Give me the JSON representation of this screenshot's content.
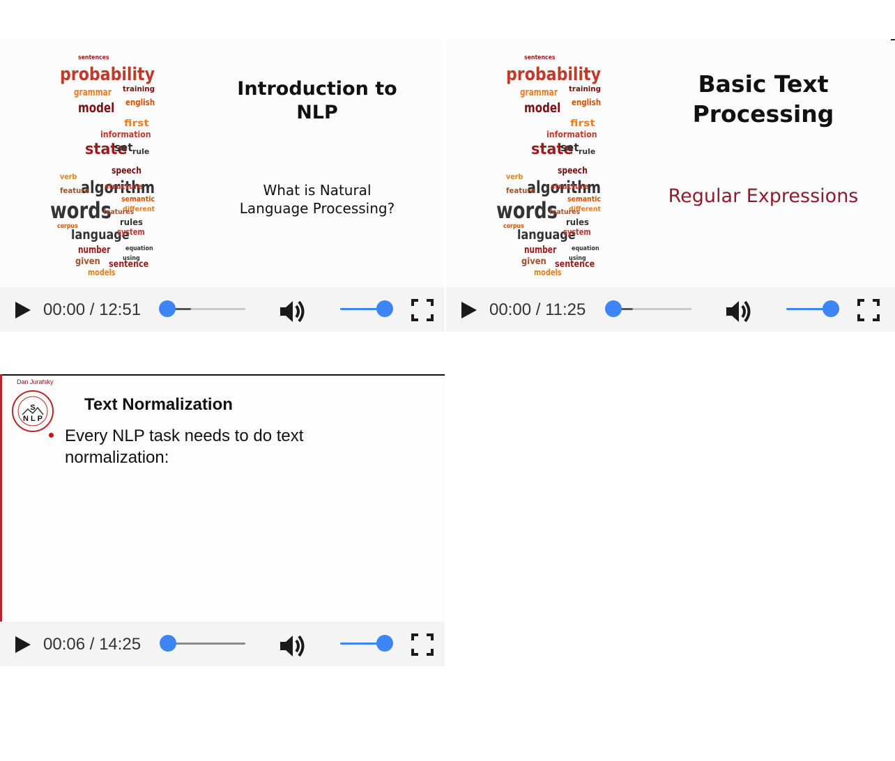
{
  "players": [
    {
      "slide": {
        "title": "Introduction to NLP",
        "subtitle": "What is Natural Language Processing?"
      },
      "controls": {
        "time": "00:00 / 12:51",
        "progress": 0.0,
        "volume": 1.0,
        "play_icon": "play-icon",
        "volume_icon": "volume-icon",
        "fullscreen_icon": "fullscreen-icon"
      }
    },
    {
      "slide": {
        "title": "Basic Text Processing",
        "subtitle": "Regular Expressions",
        "subtitle_color": "#8f1b2c"
      },
      "controls": {
        "time": "00:00 / 11:25",
        "progress": 0.0,
        "volume": 1.0,
        "play_icon": "play-icon",
        "volume_icon": "volume-icon",
        "fullscreen_icon": "fullscreen-icon"
      }
    },
    {
      "slide": {
        "author": "Dan Jurafsky",
        "title": "Text Normalization",
        "bullet": "Every NLP task needs to do text normalization:",
        "logo_text": "S N L P"
      },
      "controls": {
        "time": "00:06 / 14:25",
        "progress": 0.01,
        "volume": 1.0,
        "play_icon": "play-icon",
        "volume_icon": "volume-icon",
        "fullscreen_icon": "fullscreen-icon"
      }
    }
  ],
  "word_cloud": {
    "words": [
      "sentences",
      "probability",
      "grammar",
      "model",
      "english",
      "information",
      "state",
      "set",
      "speech",
      "rule",
      "algorithm",
      "words",
      "semantic",
      "different",
      "rules",
      "language",
      "system",
      "sentence",
      "number",
      "given",
      "models",
      "structure",
      "features",
      "training",
      "first",
      "verb",
      "feature",
      "equation",
      "corpus",
      "using"
    ]
  },
  "colors": {
    "accent": "#3d85f5",
    "brand_red": "#b8262a"
  }
}
